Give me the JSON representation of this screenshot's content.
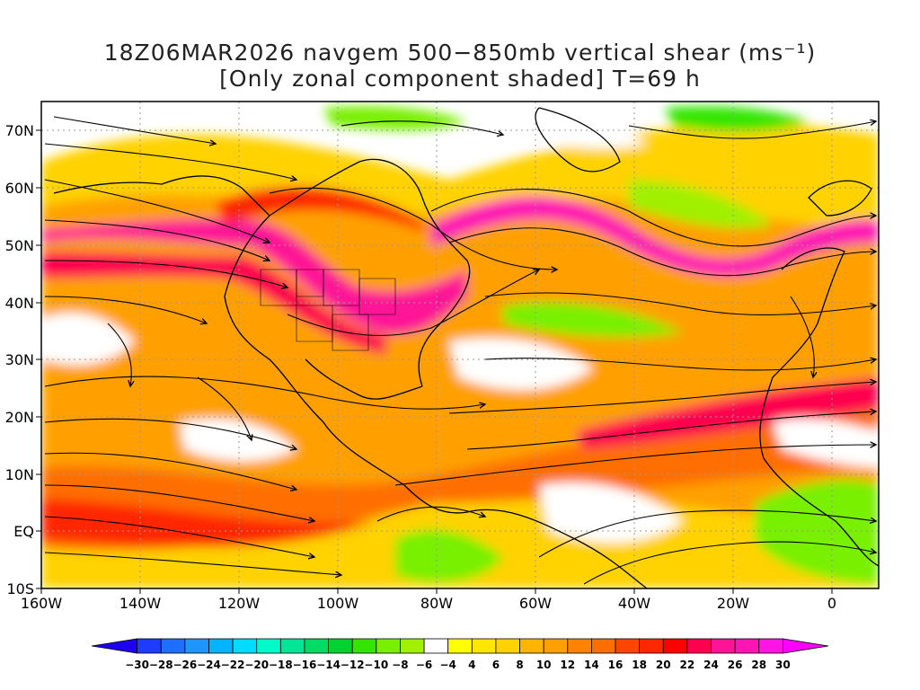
{
  "title": {
    "line1": "18Z06MAR2026 navgem 500−850mb vertical shear (ms⁻¹)",
    "line2": "[Only zonal component shaded] T=69 h"
  },
  "axes": {
    "lon_labels": [
      "160W",
      "140W",
      "120W",
      "100W",
      "80W",
      "60W",
      "40W",
      "20W",
      "0"
    ],
    "lat_labels": [
      "70N",
      "60N",
      "50N",
      "40N",
      "30N",
      "20N",
      "10N",
      "EQ",
      "10S"
    ],
    "lon_values": [
      -160,
      -140,
      -120,
      -100,
      -80,
      -60,
      -40,
      -20,
      0
    ],
    "lat_values": [
      70,
      60,
      50,
      40,
      30,
      20,
      10,
      0,
      -10
    ],
    "lon_range": [
      -160,
      10
    ],
    "lat_range": [
      -10,
      75
    ]
  },
  "colorbar": {
    "labels": [
      "−30",
      "−28",
      "−26",
      "−24",
      "−22",
      "−20",
      "−18",
      "−16",
      "−14",
      "−12",
      "−10",
      "−8",
      "−6",
      "−4",
      "4",
      "6",
      "8",
      "10",
      "12",
      "14",
      "16",
      "18",
      "20",
      "22",
      "24",
      "26",
      "28",
      "30"
    ],
    "colors": [
      "#1e00f0",
      "#1e3cff",
      "#1e6eff",
      "#1e96ff",
      "#00b4ff",
      "#00dcff",
      "#00fac8",
      "#00e696",
      "#00dc64",
      "#00d232",
      "#32e600",
      "#78f000",
      "#a0f000",
      "#ffffff",
      "#ffff00",
      "#ffe600",
      "#ffd200",
      "#ffb400",
      "#ffa000",
      "#ff8200",
      "#ff6e00",
      "#ff4600",
      "#ff2800",
      "#ff0000",
      "#ff0050",
      "#ff1496",
      "#ff14b4",
      "#ff14e6",
      "#ff00ff"
    ]
  },
  "map_data": {
    "shading": "zonal component of 500−850mb vertical shear",
    "streamlines": "vertical shear vector"
  }
}
